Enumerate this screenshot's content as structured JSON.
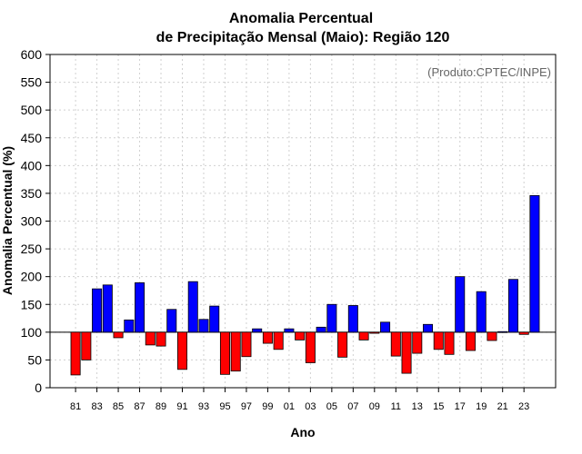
{
  "chart_data": {
    "type": "bar",
    "title": "Anomalia Percentual",
    "subtitle": "de Precipitação Mensal (Maio): Região 120",
    "credit": "(Produto:CPTEC/INPE)",
    "xlabel": "Ano",
    "ylabel": "Anomalia Percentual (%)",
    "ylim": [
      0,
      600
    ],
    "baseline": 100,
    "yticks": [
      0,
      50,
      100,
      150,
      200,
      250,
      300,
      350,
      400,
      450,
      500,
      550,
      600
    ],
    "grid": true,
    "colors": {
      "above": "#0000ff",
      "below": "#ff0000",
      "outline": "#000000"
    },
    "categories": [
      "1981",
      "1982",
      "1983",
      "1984",
      "1985",
      "1986",
      "1987",
      "1988",
      "1989",
      "1990",
      "1991",
      "1992",
      "1993",
      "1994",
      "1995",
      "1996",
      "1997",
      "1998",
      "1999",
      "2000",
      "2001",
      "2002",
      "2003",
      "2004",
      "2005",
      "2006",
      "2007",
      "2008",
      "2009",
      "2010",
      "2011",
      "2012",
      "2013",
      "2014",
      "2015",
      "2016",
      "2017",
      "2018",
      "2019",
      "2020",
      "2021",
      "2022",
      "2023",
      "2024"
    ],
    "tick_labels": [
      "81",
      "83",
      "85",
      "87",
      "89",
      "91",
      "93",
      "95",
      "97",
      "99",
      "01",
      "03",
      "05",
      "07",
      "09",
      "11",
      "13",
      "15",
      "17",
      "19",
      "21",
      "23"
    ],
    "values": [
      23,
      50,
      178,
      185,
      90,
      122,
      189,
      77,
      75,
      141,
      33,
      191,
      123,
      147,
      24,
      30,
      56,
      106,
      80,
      69,
      106,
      86,
      45,
      109,
      150,
      55,
      148,
      86,
      98,
      118,
      57,
      26,
      62,
      114,
      69,
      60,
      200,
      67,
      173,
      85,
      101,
      195,
      96,
      346
    ]
  }
}
